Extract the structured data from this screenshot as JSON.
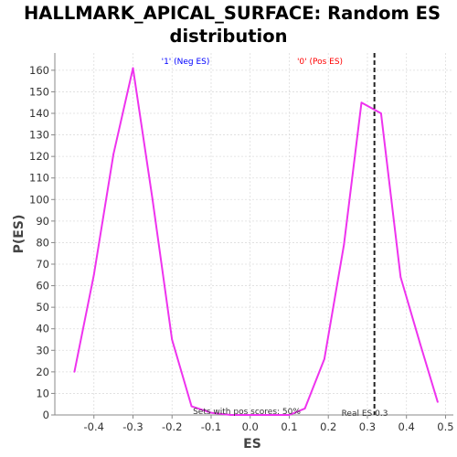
{
  "chart_data": {
    "type": "line",
    "title_lines": [
      "HALLMARK_APICAL_SURFACE: Random ES",
      "distribution"
    ],
    "xlabel": "ES",
    "ylabel": "P(ES)",
    "xlim": [
      -0.5,
      0.52
    ],
    "ylim": [
      0,
      168
    ],
    "x_ticks": [
      "-0.4",
      "-0.3",
      "-0.2",
      "-0.1",
      "0.0",
      "0.1",
      "0.2",
      "0.3",
      "0.4",
      "0.5"
    ],
    "y_ticks": [
      "0",
      "10",
      "20",
      "30",
      "40",
      "50",
      "60",
      "70",
      "80",
      "90",
      "100",
      "110",
      "120",
      "130",
      "140",
      "150",
      "160"
    ],
    "grid": true,
    "series": [
      {
        "color": "#ee33ee",
        "x": [
          -0.45,
          -0.4,
          -0.35,
          -0.3,
          -0.25,
          -0.2,
          -0.15,
          -0.1,
          -0.05,
          0.0,
          0.05,
          0.1,
          0.14,
          0.19,
          0.24,
          0.285,
          0.335,
          0.385,
          0.435,
          0.48
        ],
        "y": [
          20,
          65,
          121,
          161,
          100,
          35,
          4,
          1,
          0,
          0,
          0,
          0,
          3,
          26,
          79,
          145,
          140,
          64,
          33,
          6
        ]
      }
    ],
    "real_es": 0.318,
    "annotations": {
      "neg_label": "'1' (Neg ES)",
      "neg_color": "#0000ff",
      "pos_label": "'0' (Pos ES)",
      "pos_color": "#ff0000",
      "sets_text": "Sets with pos scores: 50%",
      "real_es_text": "Real ES 0.3"
    }
  }
}
